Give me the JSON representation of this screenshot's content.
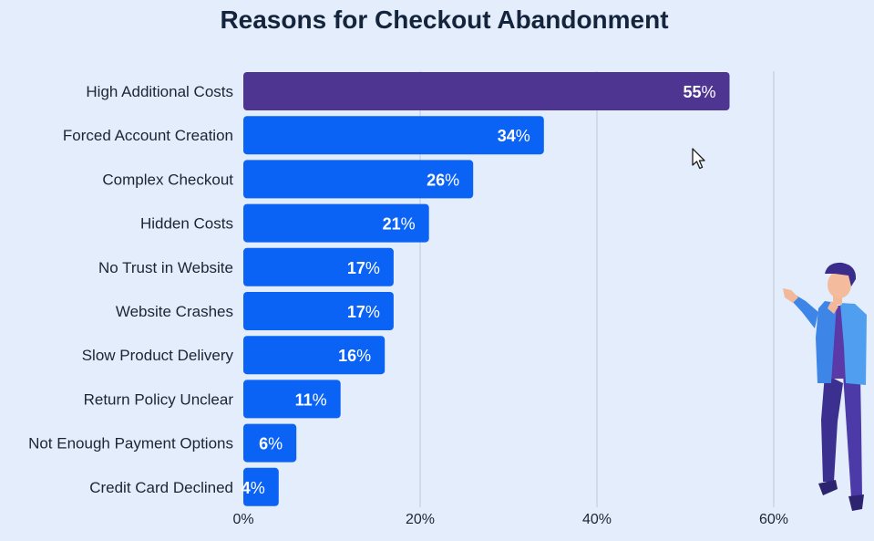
{
  "chart_data": {
    "type": "bar",
    "orientation": "horizontal",
    "title": "Reasons for Checkout Abandonment",
    "categories": [
      "High Additional Costs",
      "Forced Account Creation",
      "Complex Checkout",
      "Hidden Costs",
      "No Trust in Website",
      "Website Crashes",
      "Slow Product Delivery",
      "Return Policy Unclear",
      "Not Enough Payment Options",
      "Credit Card Declined"
    ],
    "values": [
      55,
      34,
      26,
      21,
      17,
      17,
      16,
      11,
      6,
      4
    ],
    "value_suffix": "%",
    "xlim": [
      0,
      60
    ],
    "xticks": [
      "0%",
      "20%",
      "40%",
      "60%"
    ],
    "grid": true,
    "colors": {
      "highlight": "#4d3591",
      "bar": "#0b63f6",
      "grid": "#c6cfdb"
    }
  }
}
